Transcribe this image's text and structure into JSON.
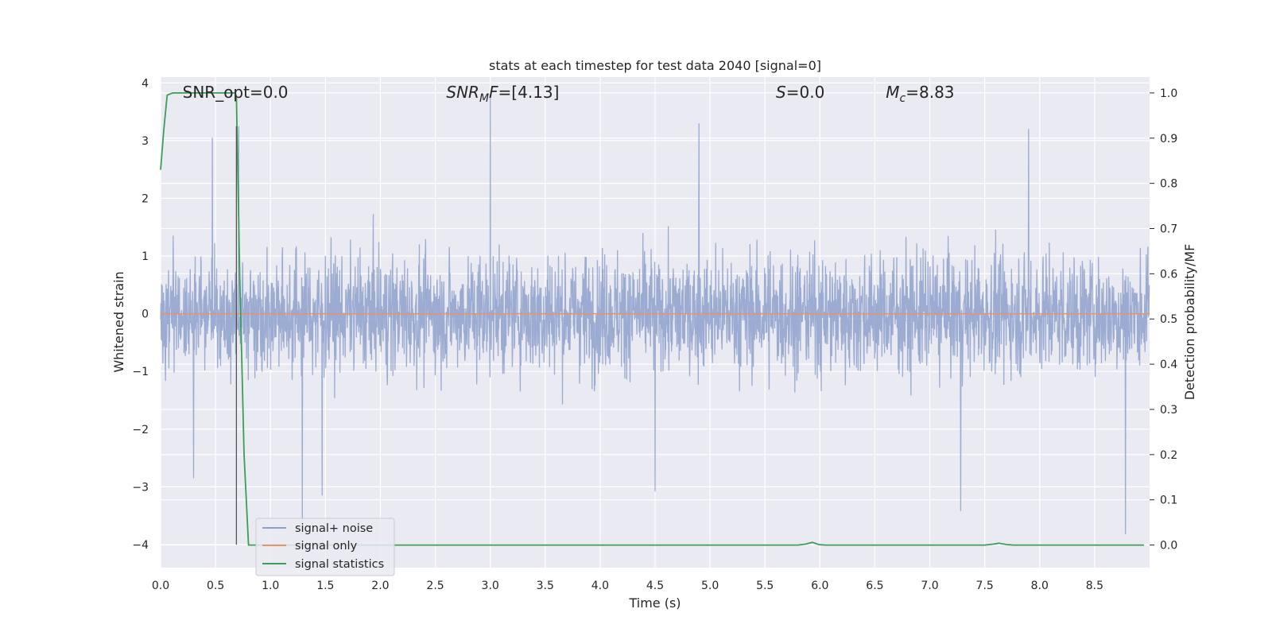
{
  "chart_data": {
    "type": "line",
    "title": "stats at each timestep for test data 2040 [signal=0]",
    "xlabel": "Time (s)",
    "ylabel_left": "Whitened strain",
    "ylabel_right": "Detection probability/MF",
    "xlim": [
      0.0,
      9.0
    ],
    "ylim_left": [
      -4.4,
      4.1
    ],
    "ylim_right": [
      -0.05,
      1.035
    ],
    "x_ticks": [
      "0.0",
      "0.5",
      "1.0",
      "1.5",
      "2.0",
      "2.5",
      "3.0",
      "3.5",
      "4.0",
      "4.5",
      "5.0",
      "5.5",
      "6.0",
      "6.5",
      "7.0",
      "7.5",
      "8.0",
      "8.5"
    ],
    "x_tick_values": [
      0.0,
      0.5,
      1.0,
      1.5,
      2.0,
      2.5,
      3.0,
      3.5,
      4.0,
      4.5,
      5.0,
      5.5,
      6.0,
      6.5,
      7.0,
      7.5,
      8.0,
      8.5
    ],
    "y_left_ticks": [
      "−4",
      "−3",
      "−2",
      "−1",
      "0",
      "1",
      "2",
      "3",
      "4"
    ],
    "y_left_tick_values": [
      -4,
      -3,
      -2,
      -1,
      0,
      1,
      2,
      3,
      4
    ],
    "y_right_ticks": [
      "0.0",
      "0.1",
      "0.2",
      "0.3",
      "0.4",
      "0.5",
      "0.6",
      "0.7",
      "0.8",
      "0.9",
      "1.0"
    ],
    "y_right_tick_values": [
      0.0,
      0.1,
      0.2,
      0.3,
      0.4,
      0.5,
      0.6,
      0.7,
      0.8,
      0.9,
      1.0
    ],
    "grid": true,
    "legend_position": "lower-left",
    "vertical_marker_x": 0.69,
    "vertical_marker_y_range": [
      -4.0,
      3.25
    ],
    "annotations": [
      {
        "prefix": "SNR_opt=0.0",
        "sub": "",
        "suffix": "",
        "x": 0.2
      },
      {
        "prefix": "SNR",
        "sub": "M",
        "suffix": "F=[4.13]",
        "x": 2.6
      },
      {
        "prefix": "S",
        "sub": "",
        "suffix": "=0.0",
        "x": 5.6
      },
      {
        "prefix": "M",
        "sub": "c",
        "suffix": "=8.83",
        "x": 6.6
      }
    ],
    "series": [
      {
        "name": "signal+ noise",
        "axis": "left",
        "color": "#8da0cb",
        "description_samples": 3000,
        "y_range": [
          -3.85,
          3.75
        ],
        "spikes": [
          [
            0.47,
            3.05
          ],
          [
            0.71,
            3.25
          ],
          [
            3.0,
            3.75
          ],
          [
            4.9,
            3.3
          ],
          [
            7.9,
            3.2
          ],
          [
            1.29,
            -3.65
          ],
          [
            1.47,
            -3.15
          ],
          [
            4.5,
            -3.08
          ],
          [
            7.28,
            -3.42
          ],
          [
            8.78,
            -3.82
          ],
          [
            0.3,
            -2.85
          ]
        ]
      },
      {
        "name": "signal only",
        "axis": "left",
        "color": "#e5936e",
        "x": [
          0.0,
          9.0
        ],
        "y": [
          0.0,
          0.0
        ]
      },
      {
        "name": "signal statistics",
        "axis": "right",
        "color": "#3c9e56",
        "x": [
          0.0,
          0.03,
          0.06,
          0.11,
          0.2,
          0.4,
          0.6,
          0.68,
          0.69,
          0.72,
          0.76,
          0.8,
          0.84,
          1.0,
          2.0,
          3.0,
          4.0,
          5.0,
          5.8,
          5.87,
          5.93,
          5.99,
          6.05,
          7.0,
          7.5,
          7.58,
          7.63,
          7.7,
          7.76,
          8.0,
          8.5,
          8.95
        ],
        "y": [
          0.83,
          0.92,
          0.995,
          1.0,
          1.0,
          1.0,
          1.0,
          1.0,
          0.99,
          0.6,
          0.2,
          0.0,
          0.0,
          0.0,
          0.0,
          0.0,
          0.0,
          0.0,
          0.0,
          0.002,
          0.006,
          0.001,
          0.0,
          0.0,
          0.0,
          0.002,
          0.004,
          0.001,
          0.0,
          0.0,
          0.0,
          0.0
        ]
      }
    ]
  }
}
